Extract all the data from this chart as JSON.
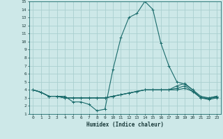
{
  "xlabel": "Humidex (Indice chaleur)",
  "ylabel": "",
  "background_color": "#cde8e8",
  "grid_color": "#aacfcf",
  "line_color": "#1a6b6b",
  "xlim": [
    -0.5,
    23.5
  ],
  "ylim": [
    1,
    15
  ],
  "xticks": [
    0,
    1,
    2,
    3,
    4,
    5,
    6,
    7,
    8,
    9,
    10,
    11,
    12,
    13,
    14,
    15,
    16,
    17,
    18,
    19,
    20,
    21,
    22,
    23
  ],
  "yticks": [
    1,
    2,
    3,
    4,
    5,
    6,
    7,
    8,
    9,
    10,
    11,
    12,
    13,
    14,
    15
  ],
  "lines": [
    {
      "x": [
        0,
        1,
        2,
        3,
        4,
        5,
        6,
        7,
        8,
        9,
        10,
        11,
        12,
        13,
        14,
        15,
        16,
        17,
        18,
        19,
        20,
        21,
        22,
        23
      ],
      "y": [
        4,
        3.7,
        3.2,
        3.2,
        3.2,
        2.5,
        2.5,
        2.2,
        1.4,
        1.6,
        6.5,
        10.5,
        13,
        13.5,
        15,
        14,
        9.8,
        7,
        5,
        4.7,
        4,
        3,
        3,
        3.2
      ]
    },
    {
      "x": [
        0,
        1,
        2,
        3,
        4,
        5,
        6,
        7,
        8,
        9,
        10,
        11,
        12,
        13,
        14,
        15,
        16,
        17,
        18,
        19,
        20,
        21,
        22,
        23
      ],
      "y": [
        4,
        3.7,
        3.2,
        3.2,
        3.0,
        3.0,
        3.0,
        3.0,
        3.0,
        3.0,
        3.2,
        3.4,
        3.6,
        3.8,
        4.0,
        4.0,
        4.0,
        4.0,
        4.5,
        4.8,
        4.0,
        3.2,
        3.0,
        3.2
      ]
    },
    {
      "x": [
        0,
        1,
        2,
        3,
        4,
        5,
        6,
        7,
        8,
        9,
        10,
        11,
        12,
        13,
        14,
        15,
        16,
        17,
        18,
        19,
        20,
        21,
        22,
        23
      ],
      "y": [
        4,
        3.7,
        3.2,
        3.2,
        3.0,
        3.0,
        3.0,
        3.0,
        3.0,
        3.0,
        3.2,
        3.4,
        3.6,
        3.8,
        4.0,
        4.0,
        4.0,
        4.0,
        4.2,
        4.5,
        3.8,
        3.0,
        2.9,
        3.1
      ]
    },
    {
      "x": [
        0,
        1,
        2,
        3,
        4,
        5,
        6,
        7,
        8,
        9,
        10,
        11,
        12,
        13,
        14,
        15,
        16,
        17,
        18,
        19,
        20,
        21,
        22,
        23
      ],
      "y": [
        4,
        3.7,
        3.2,
        3.2,
        3.0,
        3.0,
        3.0,
        3.0,
        3.0,
        3.0,
        3.2,
        3.4,
        3.6,
        3.8,
        4.0,
        4.0,
        4.0,
        4.0,
        4.0,
        4.2,
        3.8,
        3.0,
        2.8,
        3.0
      ]
    }
  ]
}
